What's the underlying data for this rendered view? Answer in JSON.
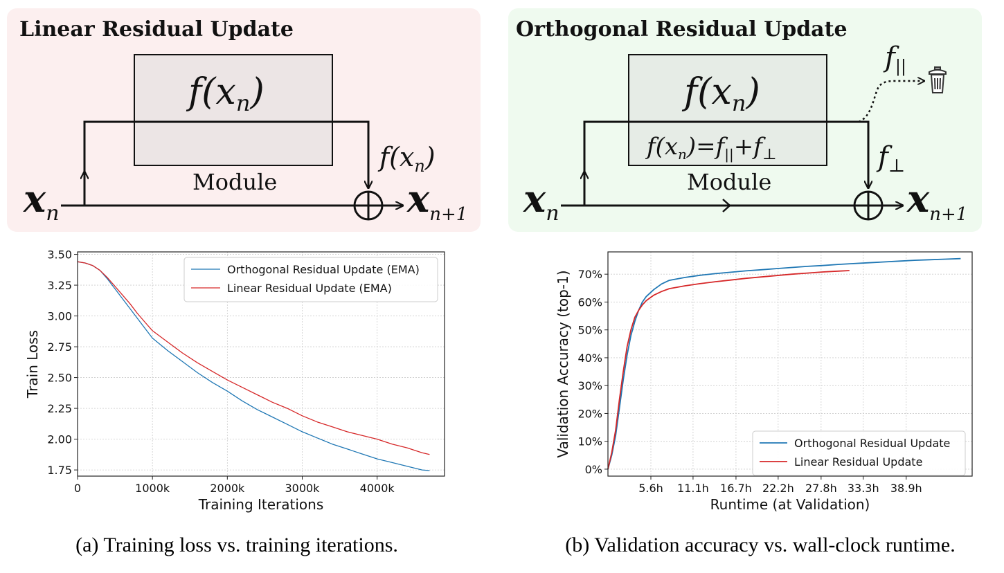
{
  "diagrams": {
    "linear": {
      "title": "Linear Residual Update",
      "module_fn": "f(x",
      "module_fn_sub": "n",
      "module_label": "Module",
      "input_var": "x",
      "input_sub": "n",
      "output_var": "x",
      "output_sub": "n+1",
      "skip_label": "f(x",
      "skip_label_sub": "n",
      "bg_color": "#fcefef"
    },
    "orthogonal": {
      "title": "Orthogonal Residual Update",
      "module_fn": "f(x",
      "module_fn_sub": "n",
      "decomp_text": "f(x",
      "decomp_sub": "n",
      "decomp_rest": ")=f",
      "decomp_par": "||",
      "decomp_plus": "+f",
      "decomp_perp": "⊥",
      "module_label": "Module",
      "input_var": "x",
      "input_sub": "n",
      "output_var": "x",
      "output_sub": "n+1",
      "parallel_label": "f",
      "parallel_sub": "||",
      "perp_label": "f",
      "perp_sub": "⊥",
      "bg_color": "#effaef",
      "discard_icon": "trash-icon"
    }
  },
  "chart_data": [
    {
      "type": "line",
      "xlabel": "Training Iterations",
      "ylabel": "Train Loss",
      "xlim": [
        0,
        4900
      ],
      "ylim": [
        1.7,
        3.52
      ],
      "xticks": [
        0,
        1000,
        2000,
        3000,
        4000
      ],
      "xtick_labels": [
        "0",
        "1000k",
        "2000k",
        "3000k",
        "4000k"
      ],
      "yticks": [
        1.75,
        2.0,
        2.25,
        2.5,
        2.75,
        3.0,
        3.25,
        3.5
      ],
      "ytick_labels": [
        "1.75",
        "2.00",
        "2.25",
        "2.50",
        "2.75",
        "3.00",
        "3.25",
        "3.50"
      ],
      "grid": true,
      "legend_position": "top-right",
      "series": [
        {
          "name": "Orthogonal Residual Update (EMA)",
          "color": "#1f77b4",
          "x": [
            0,
            100,
            200,
            300,
            400,
            500,
            600,
            700,
            800,
            900,
            1000,
            1200,
            1400,
            1600,
            1800,
            2000,
            2200,
            2400,
            2600,
            2800,
            3000,
            3200,
            3400,
            3600,
            3800,
            4000,
            4200,
            4400,
            4600,
            4700
          ],
          "y": [
            3.44,
            3.43,
            3.41,
            3.37,
            3.3,
            3.22,
            3.14,
            3.06,
            2.98,
            2.9,
            2.82,
            2.72,
            2.63,
            2.54,
            2.46,
            2.39,
            2.31,
            2.24,
            2.18,
            2.12,
            2.06,
            2.01,
            1.96,
            1.92,
            1.88,
            1.84,
            1.81,
            1.78,
            1.75,
            1.745
          ]
        },
        {
          "name": "Linear Residual Update (EMA)",
          "color": "#d62728",
          "x": [
            0,
            100,
            200,
            300,
            400,
            500,
            600,
            700,
            800,
            900,
            1000,
            1200,
            1400,
            1600,
            1800,
            2000,
            2200,
            2400,
            2600,
            2800,
            3000,
            3200,
            3400,
            3600,
            3800,
            4000,
            4200,
            4400,
            4600,
            4700
          ],
          "y": [
            3.44,
            3.43,
            3.41,
            3.37,
            3.31,
            3.24,
            3.17,
            3.1,
            3.02,
            2.95,
            2.88,
            2.79,
            2.7,
            2.62,
            2.55,
            2.48,
            2.42,
            2.36,
            2.3,
            2.25,
            2.19,
            2.14,
            2.1,
            2.06,
            2.03,
            2.0,
            1.96,
            1.93,
            1.89,
            1.875
          ]
        }
      ],
      "caption": "(a) Training loss vs. training iterations."
    },
    {
      "type": "line",
      "xlabel": "Runtime (at Validation)",
      "ylabel": "Validation Accuracy (top-1)",
      "xlim": [
        0,
        47.5
      ],
      "ylim": [
        -2.5,
        78
      ],
      "xticks": [
        5.6,
        11.1,
        16.7,
        22.2,
        27.8,
        33.3,
        38.9
      ],
      "xtick_labels": [
        "5.6h",
        "11.1h",
        "16.7h",
        "22.2h",
        "27.8h",
        "33.3h",
        "38.9h"
      ],
      "yticks": [
        0,
        10,
        20,
        30,
        40,
        50,
        60,
        70
      ],
      "ytick_labels": [
        "0%",
        "10%",
        "20%",
        "30%",
        "40%",
        "50%",
        "60%",
        "70%"
      ],
      "grid": true,
      "legend_position": "bottom-right",
      "series": [
        {
          "name": "Orthogonal Residual Update",
          "color": "#1f77b4",
          "x": [
            0,
            0.5,
            1,
            1.5,
            2,
            2.5,
            3,
            3.5,
            4,
            4.5,
            5,
            6,
            7,
            8,
            10,
            12,
            14,
            16,
            18,
            20,
            22,
            24,
            26,
            28,
            30,
            32,
            34,
            36,
            38,
            40,
            42,
            44,
            46
          ],
          "y": [
            0,
            5,
            12,
            22,
            32,
            41,
            48,
            53,
            57,
            60,
            62,
            64.5,
            66.5,
            67.8,
            68.8,
            69.6,
            70.2,
            70.7,
            71.2,
            71.6,
            72,
            72.4,
            72.8,
            73.1,
            73.5,
            73.8,
            74.1,
            74.4,
            74.7,
            75,
            75.2,
            75.4,
            75.6
          ]
        },
        {
          "name": "Linear Residual Update",
          "color": "#d62728",
          "x": [
            0,
            0.5,
            1,
            1.5,
            2,
            2.5,
            3,
            3.5,
            4,
            4.5,
            5,
            6,
            7,
            8,
            10,
            12,
            14,
            16,
            18,
            20,
            22,
            24,
            26,
            28,
            30,
            31.5
          ],
          "y": [
            0,
            6,
            14,
            25,
            35,
            44,
            50,
            54.5,
            57,
            59,
            60.5,
            62.5,
            63.8,
            64.8,
            65.8,
            66.6,
            67.3,
            67.9,
            68.5,
            69,
            69.5,
            70,
            70.4,
            70.8,
            71.1,
            71.3
          ]
        }
      ],
      "caption": "(b) Validation accuracy vs. wall-clock runtime."
    }
  ]
}
